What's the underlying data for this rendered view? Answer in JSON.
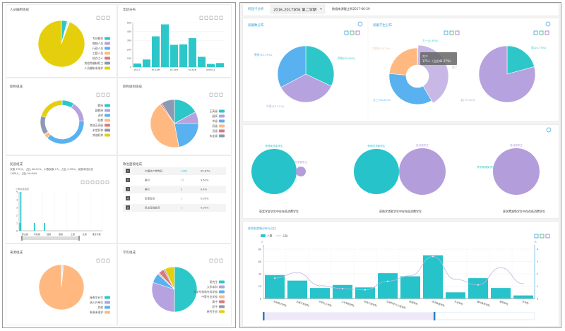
{
  "colors": {
    "teal": "#2ec7c9",
    "lavender": "#b6a2de",
    "blue": "#5ab1ef",
    "orange": "#ffb980",
    "red": "#d87a80",
    "slate": "#8d98b3",
    "yellow": "#e5cf0d",
    "accent": "#3aa0d8",
    "light_lavender": "#c7b8e6"
  },
  "left": {
    "toolbox_icons": [
      "data-view-icon",
      "refresh-icon",
      "download-icon"
    ],
    "staff": {
      "title": "人员编制组成",
      "labels": [
        "专任教师",
        "教辅人员",
        "行政人员",
        "工勤人员",
        "校办工人",
        "其他类编制职工",
        "人员编制未维护"
      ],
      "values": [
        4,
        0.5,
        0.5,
        0.3,
        0.2,
        0.2,
        94.3
      ]
    },
    "age": {
      "title": "年龄分布",
      "categories": [
        "25以下",
        "26-29岁",
        "30-34岁",
        "35-39岁",
        "40-44岁",
        "45-49岁",
        "50-54岁",
        "55-59岁",
        "60岁以上",
        "未知"
      ],
      "tick_labels": [
        "25以下",
        "",
        "30-34岁",
        "",
        "40-44岁",
        "",
        "50-54岁",
        "",
        "60岁以上",
        ""
      ],
      "values": [
        40,
        85,
        345,
        480,
        250,
        255,
        325,
        115,
        35,
        45
      ],
      "yticks": [
        "0",
        "100",
        "200",
        "300",
        "400",
        "500"
      ],
      "ylim": [
        0,
        500
      ]
    },
    "title_comp": {
      "title": "职称组成",
      "labels": [
        "教授",
        "副教授",
        "讲师",
        "助教",
        "其他正高级",
        "未定职称",
        "其他职称"
      ],
      "values": [
        9,
        15,
        38,
        3,
        0.5,
        14,
        20.5
      ]
    },
    "level": {
      "title": "职称级别组成",
      "labels": [
        "正高级",
        "副高",
        "中级",
        "初级",
        "员级",
        "未定级"
      ],
      "slice_labels": [
        "副高(19)",
        "正高",
        "中级",
        "初级",
        "员级",
        "未定级"
      ],
      "values": [
        17,
        8,
        22,
        43,
        1,
        9
      ]
    },
    "ethnic": {
      "title": "民族组成",
      "summary_1": "汉族 795人，占比 40.01%；少数民族 7人，占比 0.35%；民族字段为空",
      "summary_2": "1185人，占比 59.64%",
      "subtitle": "少数民族组成",
      "categories": [
        "蒙古族",
        "布依族",
        "回族",
        "苗族",
        "土族",
        "壮族",
        "维吾尔族"
      ],
      "values": [
        5,
        0,
        1,
        0,
        0,
        0,
        0
      ],
      "extra_value": 1,
      "yticks": [
        "0",
        "1",
        "2",
        "3",
        "4",
        "5"
      ],
      "ylim": [
        0,
        5
      ]
    },
    "politics": {
      "title": "政治面貌组成",
      "rows": [
        {
          "rank": "1",
          "name": "中国共产党党员",
          "count": "1965",
          "pct": "95.67%"
        },
        {
          "rank": "2",
          "name": "群众",
          "count": "72",
          "pct": "3.62%"
        },
        {
          "rank": "3",
          "name": "群众",
          "count": "8",
          "pct": "0.4%"
        },
        {
          "rank": "4",
          "name": "民革会员",
          "count": "1",
          "pct": "0.05%"
        },
        {
          "rank": "5",
          "name": "民主促进会员",
          "count": "1",
          "pct": "0.05%"
        }
      ]
    },
    "source": {
      "title": "来源组成",
      "labels": [
        "接收毕业生",
        "调入外单位",
        "其他",
        "来源未维护"
      ],
      "values": [
        0.5,
        0.5,
        0.5,
        98.5
      ]
    },
    "degree": {
      "title": "学历组成",
      "labels": [
        "研究生",
        "大学本科",
        "大学专科和专科学校",
        "中等专业学校",
        "高中",
        "初中",
        "研究生班"
      ],
      "values": [
        50,
        30,
        7,
        1,
        4,
        1,
        7
      ]
    }
  },
  "right": {
    "header": {
      "title": "校园卡分析",
      "term_select": "2016-2017学年 第二学期",
      "data_note": "数据来源截止到2017-06-29"
    },
    "meals": {
      "title": "就餐数分布",
      "labels": [
        "早餐(32.04%)",
        "午餐(35.21%)",
        "晚餐(32.75%)"
      ],
      "values": [
        32.04,
        35.21,
        32.75
      ]
    },
    "students": {
      "title": "就餐学生分布",
      "labels": [
        "大一(0.35%)",
        "大二",
        "大三(34.91%)",
        "大四(23.47%)"
      ],
      "values": [
        0.35,
        41.27,
        34.91,
        23.47
      ],
      "tooltip_title": "大二",
      "tooltip_value": "175人（占比41.27%）"
    },
    "gender": {
      "labels": [
        "男(20.75%)",
        "女(79.25%)"
      ],
      "values": [
        20.75,
        79.25
      ]
    },
    "bubbles": [
      {
        "a": "获得奖学金学生",
        "b": "低消费学生",
        "caption": "获奖学金学生中存在低消费学生",
        "ratio_b": 0.2
      },
      {
        "a": "获助学贷款学生",
        "b": "低消费学生",
        "caption": "获助学贷款学生中存在低消费学生",
        "ratio_b": 1.05
      },
      {
        "a": "获学费减免学生",
        "b": "低消费学生",
        "caption": "获学费减免学生中存在低消费学生",
        "ratio_b": 1
      }
    ],
    "dept": {
      "title": "各院系就餐分布与占比",
      "legend_bar": "人数",
      "legend_line": "占比",
      "y_left_unit": "人",
      "y_right_unit": "%",
      "categories": [
        "机械电子学院",
        "交通工程学院",
        "化学化工学院",
        "土木建筑学院",
        "机电工程学院",
        "信息科学与工程学院",
        "数理学院",
        "经济管理学院",
        "外语学院",
        "国际教育学院",
        "建筑学院",
        "法学院"
      ],
      "counts": [
        38,
        29,
        17,
        22,
        18,
        41,
        36,
        70,
        10,
        33,
        17,
        5
      ],
      "ratio": [
        1.65,
        2.1,
        1.05,
        0.8,
        0.7,
        1.4,
        1.85,
        3.4,
        1.55,
        1.1,
        2.5,
        1.2
      ],
      "yticks_left": [
        "0",
        "20",
        "40",
        "60",
        "80"
      ],
      "yticks_right": [
        "0",
        "1",
        "2",
        "3",
        "4"
      ],
      "ylim_left": [
        0,
        80
      ],
      "ylim_right": [
        0,
        4
      ]
    }
  }
}
